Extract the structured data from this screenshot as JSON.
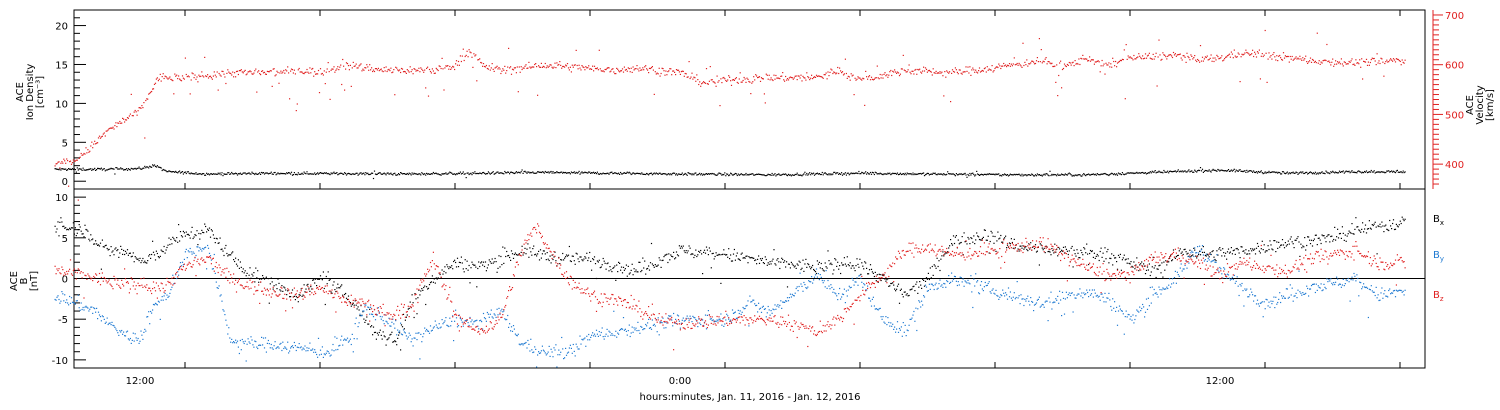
{
  "x_axis": {
    "label": "hours:minutes, Jan. 11, 2016 - Jan. 12, 2016",
    "tick_labels": [
      "12:00",
      "0:00",
      "12:00"
    ]
  },
  "chart_data": [
    {
      "type": "scatter",
      "panel": "top",
      "ylabel_left": [
        "ACE",
        "Ion Density",
        "[cm⁻³]"
      ],
      "ylabel_right": [
        "ACE",
        "Velocity",
        "[km/s]"
      ],
      "ylim_left": [
        -1,
        22
      ],
      "ylim_right": [
        350,
        710
      ],
      "left_ticks": [
        0,
        5,
        10,
        15,
        20
      ],
      "right_ticks": [
        400,
        500,
        600,
        700
      ],
      "x_hours_range": [
        10.1,
        40.1
      ],
      "series": [
        {
          "axis": "left",
          "color": "#000000",
          "knots": [
            [
              10.1,
              1.6
            ],
            [
              11.2,
              1.6
            ],
            [
              12.0,
              1.7
            ],
            [
              12.3,
              2.1
            ],
            [
              12.6,
              1.3
            ],
            [
              13.5,
              1.0
            ],
            [
              15.0,
              1.1
            ],
            [
              18.0,
              1.0
            ],
            [
              21.0,
              1.2
            ],
            [
              24.0,
              1.0
            ],
            [
              26.0,
              0.9
            ],
            [
              28.0,
              1.1
            ],
            [
              31.0,
              0.9
            ],
            [
              33.0,
              0.9
            ],
            [
              36.0,
              1.5
            ],
            [
              37.5,
              1.1
            ],
            [
              39.0,
              1.3
            ],
            [
              40.1,
              1.3
            ]
          ]
        },
        {
          "axis": "right",
          "color": "#e02020",
          "knots": [
            [
              10.1,
              400
            ],
            [
              10.6,
              410
            ],
            [
              11.3,
              470
            ],
            [
              12.0,
              510
            ],
            [
              12.4,
              575
            ],
            [
              13.0,
              575
            ],
            [
              14.0,
              585
            ],
            [
              15.0,
              585
            ],
            [
              15.5,
              590
            ],
            [
              16.0,
              585
            ],
            [
              16.5,
              600
            ],
            [
              17.0,
              595
            ],
            [
              17.5,
              590
            ],
            [
              18.5,
              590
            ],
            [
              19.0,
              600
            ],
            [
              19.3,
              630
            ],
            [
              19.6,
              600
            ],
            [
              20.0,
              590
            ],
            [
              21.0,
              600
            ],
            [
              22.5,
              590
            ],
            [
              23.0,
              595
            ],
            [
              24.0,
              585
            ],
            [
              24.5,
              565
            ],
            [
              25.0,
              570
            ],
            [
              26.0,
              575
            ],
            [
              27.0,
              575
            ],
            [
              27.5,
              590
            ],
            [
              28.0,
              570
            ],
            [
              29.0,
              590
            ],
            [
              30.0,
              585
            ],
            [
              31.0,
              595
            ],
            [
              32.0,
              610
            ],
            [
              32.5,
              595
            ],
            [
              33.0,
              615
            ],
            [
              33.5,
              600
            ],
            [
              34.0,
              615
            ],
            [
              35.0,
              620
            ],
            [
              35.5,
              610
            ],
            [
              36.0,
              615
            ],
            [
              36.5,
              625
            ],
            [
              37.0,
              620
            ],
            [
              37.5,
              615
            ],
            [
              38.0,
              610
            ],
            [
              39.0,
              605
            ],
            [
              40.1,
              610
            ]
          ]
        }
      ]
    },
    {
      "type": "scatter",
      "panel": "bottom",
      "ylabel_left": [
        "ACE",
        "B",
        "[nT]"
      ],
      "ylim": [
        -11,
        11
      ],
      "ticks": [
        -10,
        -5,
        0,
        5,
        10
      ],
      "x_hours_range": [
        10.1,
        40.1
      ],
      "series": [
        {
          "name": "Bx",
          "color": "#000000",
          "knots": [
            [
              10.1,
              6.5
            ],
            [
              10.8,
              6.0
            ],
            [
              11.2,
              3.5
            ],
            [
              11.6,
              3.5
            ],
            [
              12.1,
              2.0
            ],
            [
              12.7,
              4.5
            ],
            [
              13.0,
              5.5
            ],
            [
              13.5,
              6.0
            ],
            [
              14.3,
              1.0
            ],
            [
              15.5,
              -2.0
            ],
            [
              16.0,
              0.0
            ],
            [
              16.7,
              -2.5
            ],
            [
              17.2,
              -6.5
            ],
            [
              17.7,
              -7.5
            ],
            [
              18.0,
              -3.0
            ],
            [
              18.5,
              0.0
            ],
            [
              19.0,
              2.0
            ],
            [
              19.5,
              1.5
            ],
            [
              20.5,
              3.5
            ],
            [
              21.3,
              2.5
            ],
            [
              22.0,
              2.5
            ],
            [
              23.0,
              1.0
            ],
            [
              24.0,
              3.5
            ],
            [
              25.0,
              3.0
            ],
            [
              26.0,
              2.0
            ],
            [
              27.0,
              1.5
            ],
            [
              28.0,
              2.0
            ],
            [
              28.5,
              0.0
            ],
            [
              29.0,
              -2.0
            ],
            [
              29.5,
              0.0
            ],
            [
              30.0,
              4.5
            ],
            [
              30.8,
              5.5
            ],
            [
              31.5,
              4.0
            ],
            [
              32.5,
              3.5
            ],
            [
              33.5,
              3.0
            ],
            [
              34.0,
              2.0
            ],
            [
              34.5,
              1.0
            ],
            [
              35.2,
              3.5
            ],
            [
              35.8,
              3.0
            ],
            [
              36.5,
              3.5
            ],
            [
              37.5,
              4.5
            ],
            [
              38.5,
              5.0
            ],
            [
              39.0,
              6.0
            ],
            [
              40.1,
              7.0
            ]
          ]
        },
        {
          "name": "By",
          "color": "#1f7ad2",
          "knots": [
            [
              10.1,
              -2.0
            ],
            [
              10.6,
              -3.0
            ],
            [
              11.0,
              -4.0
            ],
            [
              11.3,
              -5.5
            ],
            [
              11.7,
              -7.0
            ],
            [
              12.0,
              -7.5
            ],
            [
              12.2,
              -4.0
            ],
            [
              12.6,
              -2.0
            ],
            [
              13.0,
              3.0
            ],
            [
              13.5,
              4.0
            ],
            [
              14.0,
              -7.5
            ],
            [
              14.5,
              -8.0
            ],
            [
              15.0,
              -8.0
            ],
            [
              15.5,
              -8.5
            ],
            [
              16.2,
              -9.0
            ],
            [
              16.7,
              -7.0
            ],
            [
              17.0,
              -3.5
            ],
            [
              17.5,
              -5.0
            ],
            [
              18.0,
              -7.5
            ],
            [
              18.5,
              -6.0
            ],
            [
              19.0,
              -5.0
            ],
            [
              19.5,
              -5.5
            ],
            [
              20.0,
              -4.0
            ],
            [
              20.5,
              -8.0
            ],
            [
              21.0,
              -9.0
            ],
            [
              21.5,
              -9.0
            ],
            [
              22.0,
              -7.0
            ],
            [
              23.0,
              -6.0
            ],
            [
              24.0,
              -5.0
            ],
            [
              25.0,
              -5.0
            ],
            [
              25.5,
              -3.0
            ],
            [
              26.0,
              -4.0
            ],
            [
              26.5,
              -2.0
            ],
            [
              27.0,
              0.5
            ],
            [
              27.5,
              -2.0
            ],
            [
              28.0,
              0.0
            ],
            [
              28.5,
              -5.0
            ],
            [
              29.0,
              -6.5
            ],
            [
              29.5,
              -1.0
            ],
            [
              30.0,
              0.0
            ],
            [
              31.0,
              -1.5
            ],
            [
              32.0,
              -3.0
            ],
            [
              33.0,
              -1.5
            ],
            [
              33.5,
              -2.5
            ],
            [
              34.0,
              -5.0
            ],
            [
              34.5,
              -2.0
            ],
            [
              35.0,
              0.0
            ],
            [
              35.5,
              4.0
            ],
            [
              36.0,
              1.0
            ],
            [
              37.0,
              -3.0
            ],
            [
              38.0,
              -1.0
            ],
            [
              39.0,
              0.0
            ],
            [
              39.5,
              -2.0
            ],
            [
              40.1,
              -1.5
            ]
          ]
        },
        {
          "name": "Bz",
          "color": "#e02020",
          "knots": [
            [
              10.1,
              1.0
            ],
            [
              10.7,
              0.5
            ],
            [
              11.5,
              -0.5
            ],
            [
              12.5,
              -1.0
            ],
            [
              13.0,
              1.5
            ],
            [
              13.5,
              2.5
            ],
            [
              14.0,
              0.0
            ],
            [
              14.5,
              -1.0
            ],
            [
              15.0,
              -1.5
            ],
            [
              15.5,
              -2.0
            ],
            [
              16.0,
              -1.0
            ],
            [
              16.5,
              -2.5
            ],
            [
              17.0,
              -3.0
            ],
            [
              17.5,
              -4.5
            ],
            [
              18.0,
              -3.5
            ],
            [
              18.5,
              2.5
            ],
            [
              19.0,
              -4.5
            ],
            [
              19.5,
              -6.5
            ],
            [
              20.0,
              -5.0
            ],
            [
              20.5,
              4.0
            ],
            [
              20.8,
              6.5
            ],
            [
              21.0,
              4.5
            ],
            [
              21.5,
              0.0
            ],
            [
              22.0,
              -2.0
            ],
            [
              22.5,
              -2.5
            ],
            [
              23.0,
              -3.5
            ],
            [
              23.5,
              -5.0
            ],
            [
              24.0,
              -5.5
            ],
            [
              25.0,
              -5.0
            ],
            [
              26.0,
              -5.0
            ],
            [
              26.5,
              -5.5
            ],
            [
              27.0,
              -6.5
            ],
            [
              27.5,
              -5.0
            ],
            [
              28.0,
              -2.0
            ],
            [
              28.5,
              0.5
            ],
            [
              29.0,
              3.5
            ],
            [
              29.5,
              4.0
            ],
            [
              30.0,
              3.0
            ],
            [
              31.0,
              3.5
            ],
            [
              32.0,
              4.5
            ],
            [
              32.5,
              3.0
            ],
            [
              33.0,
              1.5
            ],
            [
              33.5,
              0.5
            ],
            [
              34.0,
              0.5
            ],
            [
              34.5,
              2.5
            ],
            [
              35.0,
              3.0
            ],
            [
              35.5,
              2.0
            ],
            [
              36.0,
              0.5
            ],
            [
              36.5,
              2.0
            ],
            [
              37.0,
              1.5
            ],
            [
              37.5,
              1.0
            ],
            [
              38.0,
              2.5
            ],
            [
              38.5,
              3.0
            ],
            [
              39.0,
              3.5
            ],
            [
              39.5,
              2.0
            ],
            [
              40.1,
              2.0
            ]
          ]
        }
      ]
    }
  ]
}
